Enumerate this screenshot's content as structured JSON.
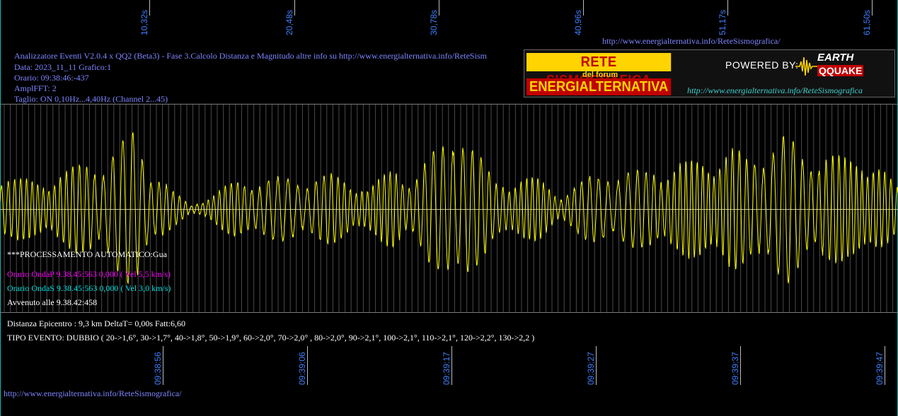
{
  "header_info": {
    "line1": "Analizzatore Eventi V2.0.4 x QQ2 (Beta3) - Fase 3.Calcolo Distanza e Magnitudo altre info su http://www.energialternativa.info/ReteSism",
    "line2": "Data: 2023_11_11 Grafico:1",
    "line3": "Orario: 09:38:46:-437",
    "line4": "AmplFFT: 2",
    "line5": "Taglio: ON 0,10Hz...4,40Hz       (Channel 2...45)"
  },
  "top_url": "http://www.energialternativa.info/ReteSismografica/",
  "logo": {
    "title": "RETE SISMOGRAFICA",
    "subtitle": "del forum",
    "name": "ENERGIALTERNATIVA",
    "powered": "POWERED BY:",
    "earth": "EARTH",
    "quake": "QQUAKE",
    "url": "http://www.energialternativa.info/ReteSismografica"
  },
  "event": {
    "processing": "***PROCESSAMENTO AUTOMATICO:Gua",
    "wave_p": "Orario OndaP 9.38.45:563  0,000 ( Vel 5,5 km/s)",
    "wave_s": "Orario OndaS 9.38.45:563  0,000 ( Vel 3,0 km/s)",
    "occurred": "Avvenuto alle 9.38.42:458",
    "distance": "Distanza Epicentro : 9,3 km DeltaT= 0,00s  Fatt:6,60",
    "event_type": "TIPO EVENTO: DUBBIO ( 20->1,6°, 30->1,7°, 40->1,8°, 50->1,9°, 60->2,0°, 70->2,0° , 80->2,0°, 90->2,1°, 100->2,1°, 110->2,1°, 120->2,2°, 130->2,2 )"
  },
  "bottom_url": "http://www.energialternativa.info/ReteSismografica/",
  "colors": {
    "background": "#000000",
    "trace": "#ffff00",
    "grid": "#7a7a7a",
    "info_text": "#7f86ff",
    "wave_p": "#ff00ff",
    "wave_s": "#00e0e0",
    "axis_labels": "#3f7fff",
    "frame": "#00c0c0"
  },
  "chart_data": {
    "type": "line",
    "series": [
      {
        "color": "#ffff00"
      }
    ],
    "top_ticks": [
      "10,32s",
      "20,48s",
      "30,78s",
      "40,96s",
      "51,17s",
      "61,50s"
    ],
    "bottom_ticks": [
      "09:38:56",
      "09:39:06",
      "09:39:17",
      "09:39:27",
      "09:39:37",
      "09:39:47"
    ],
    "envelope": [
      [
        0,
        55
      ],
      [
        5,
        48
      ],
      [
        60,
        40
      ],
      [
        100,
        60
      ],
      [
        140,
        70
      ],
      [
        175,
        100
      ],
      [
        190,
        115
      ],
      [
        205,
        75
      ],
      [
        245,
        25
      ],
      [
        270,
        5
      ],
      [
        300,
        22
      ],
      [
        330,
        40
      ],
      [
        375,
        45
      ],
      [
        425,
        45
      ],
      [
        470,
        50
      ],
      [
        520,
        30
      ],
      [
        555,
        60
      ],
      [
        585,
        45
      ],
      [
        605,
        75
      ],
      [
        630,
        100
      ],
      [
        650,
        135
      ],
      [
        670,
        90
      ],
      [
        700,
        40
      ],
      [
        730,
        45
      ],
      [
        760,
        45
      ],
      [
        790,
        20
      ],
      [
        830,
        45
      ],
      [
        860,
        55
      ],
      [
        910,
        55
      ],
      [
        950,
        65
      ],
      [
        1000,
        75
      ],
      [
        1035,
        90
      ],
      [
        1060,
        70
      ],
      [
        1085,
        100
      ],
      [
        1110,
        110
      ],
      [
        1140,
        70
      ],
      [
        1160,
        90
      ],
      [
        1200,
        70
      ],
      [
        1230,
        80
      ],
      [
        1269,
        30
      ]
    ],
    "grid": true
  }
}
